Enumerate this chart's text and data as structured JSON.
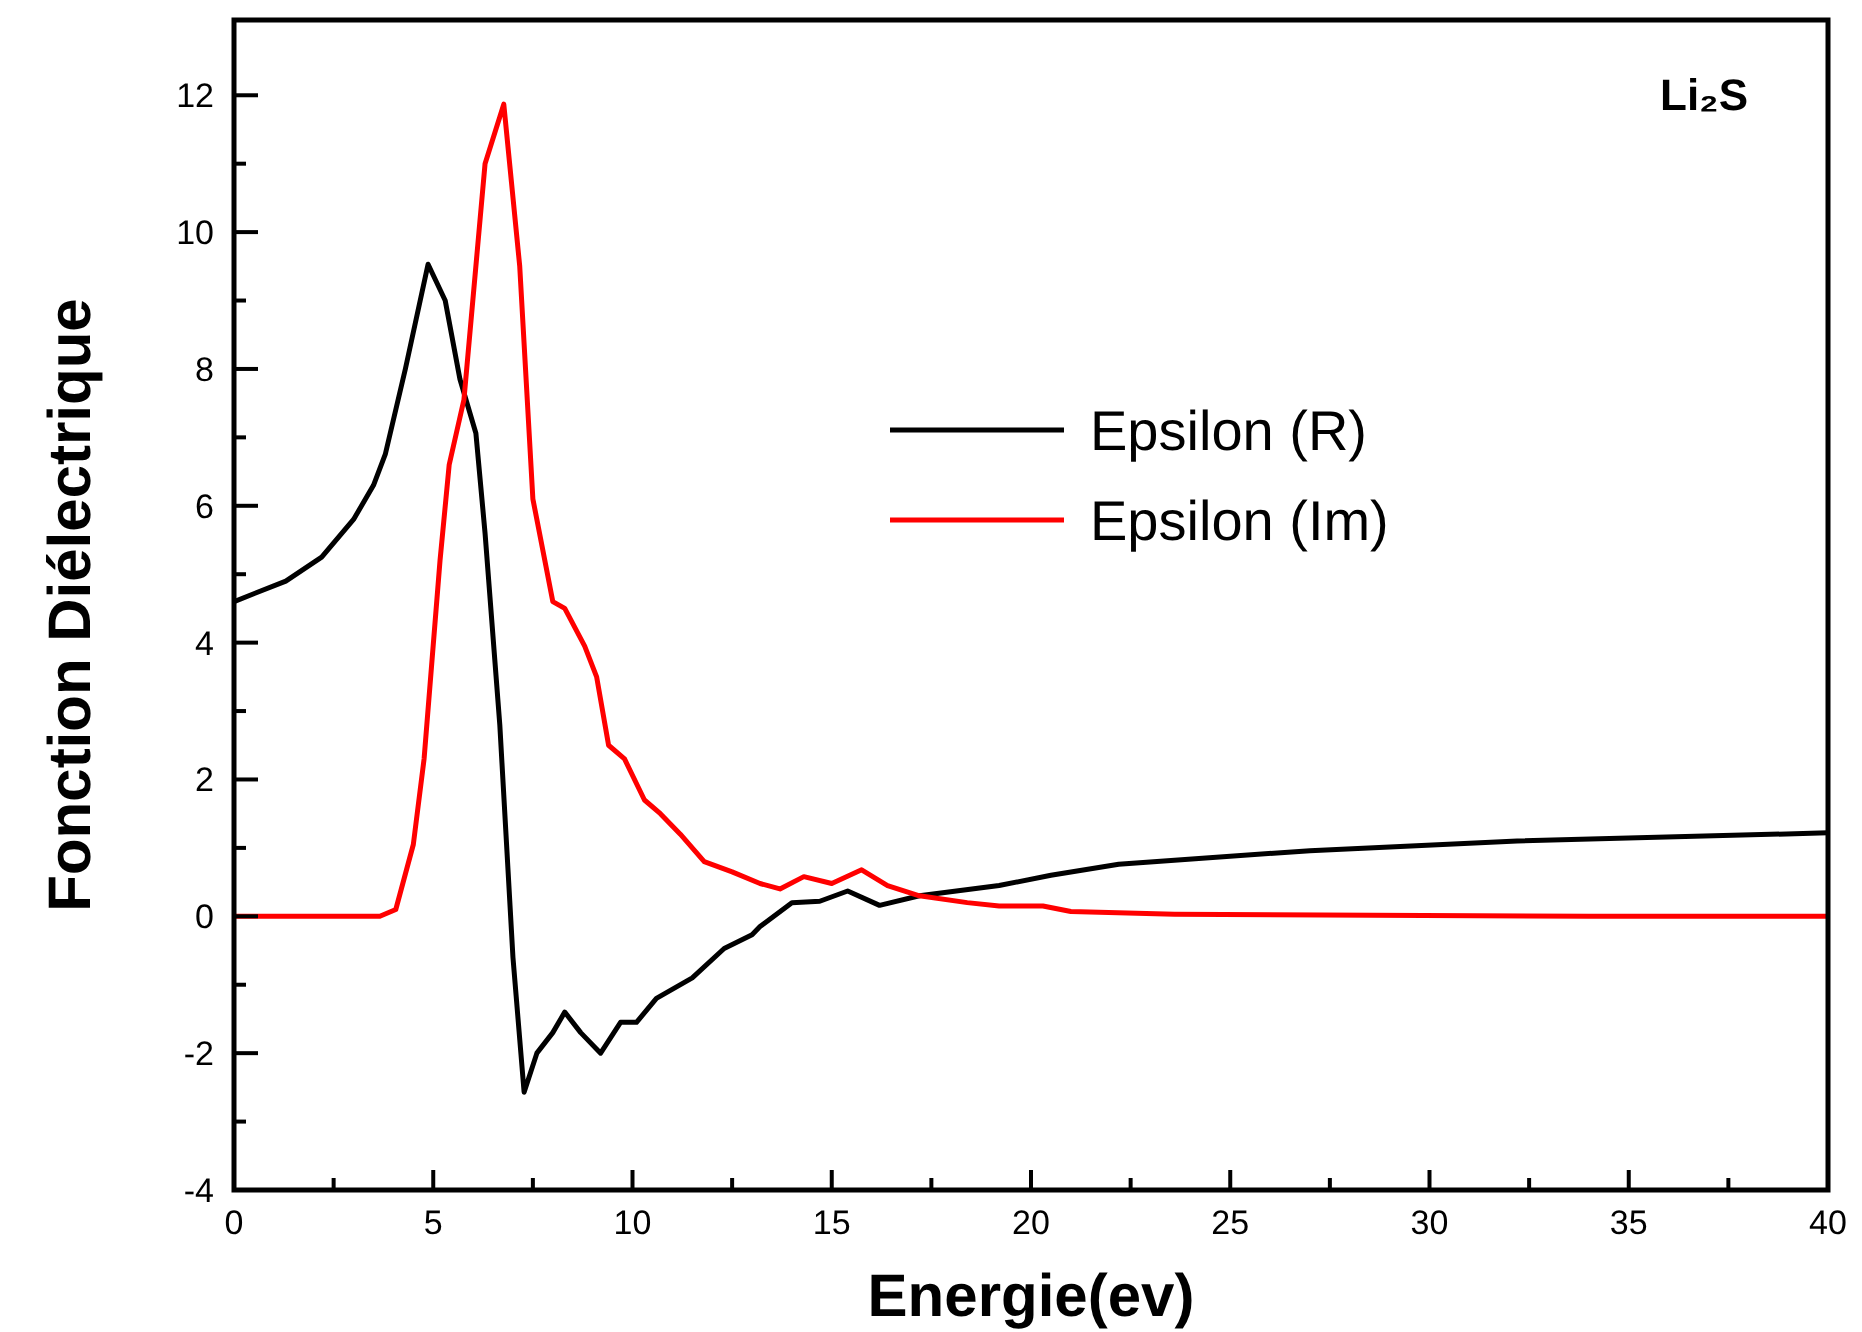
{
  "chart_data": {
    "type": "line",
    "title": "Li₂S",
    "xlabel": "Energie(ev)",
    "ylabel": "Fonction Diélectrique",
    "xlim": [
      0,
      40
    ],
    "ylim": [
      -4,
      13.1
    ],
    "xticks": [
      0,
      5,
      10,
      15,
      20,
      25,
      30,
      35,
      40
    ],
    "yticks": [
      -4,
      -2,
      0,
      2,
      4,
      6,
      8,
      10,
      12
    ],
    "legend": "top right",
    "grid": false,
    "marker": "none",
    "line_style": "solid",
    "series": [
      {
        "name": "Epsilon (R)",
        "color": "#000000",
        "x": [
          0,
          1.3,
          2.2,
          3.0,
          3.5,
          3.8,
          4.3,
          4.87,
          5.3,
          5.67,
          6.07,
          6.3,
          6.67,
          7.0,
          7.28,
          7.6,
          8.0,
          8.3,
          8.7,
          9.2,
          9.7,
          10.1,
          10.6,
          11.5,
          12.3,
          13.0,
          13.2,
          14.0,
          14.7,
          15.4,
          16.2,
          17.2,
          19.2,
          20.5,
          22.2,
          27.0,
          32.2,
          40
        ],
        "values": [
          4.6,
          4.9,
          5.25,
          5.8,
          6.3,
          6.76,
          8.0,
          9.53,
          9.0,
          7.85,
          7.06,
          5.6,
          2.8,
          -0.6,
          -2.57,
          -2.0,
          -1.7,
          -1.4,
          -1.7,
          -2.0,
          -1.55,
          -1.55,
          -1.2,
          -0.9,
          -0.47,
          -0.27,
          -0.15,
          0.2,
          0.22,
          0.37,
          0.16,
          0.3,
          0.45,
          0.6,
          0.76,
          0.96,
          1.1,
          1.22
        ]
      },
      {
        "name": "Epsilon (Im)",
        "color": "#ff0000",
        "x": [
          0,
          3.66,
          4.06,
          4.5,
          4.77,
          5.17,
          5.4,
          5.77,
          6.3,
          6.77,
          7.17,
          7.5,
          8.0,
          8.3,
          8.8,
          9.1,
          9.4,
          9.8,
          10.3,
          10.7,
          11.2,
          11.8,
          12.5,
          13.2,
          13.7,
          14.3,
          15.0,
          15.75,
          16.4,
          17.2,
          18.4,
          19.2,
          20.3,
          21.0,
          23.6,
          34,
          40
        ],
        "values": [
          0,
          0,
          0.1,
          1.05,
          2.3,
          5.2,
          6.6,
          7.55,
          11.0,
          11.87,
          9.5,
          6.1,
          4.6,
          4.5,
          3.95,
          3.5,
          2.5,
          2.3,
          1.7,
          1.5,
          1.2,
          0.8,
          0.65,
          0.48,
          0.4,
          0.58,
          0.48,
          0.68,
          0.45,
          0.3,
          0.2,
          0.15,
          0.15,
          0.07,
          0.03,
          0,
          0
        ]
      }
    ]
  }
}
